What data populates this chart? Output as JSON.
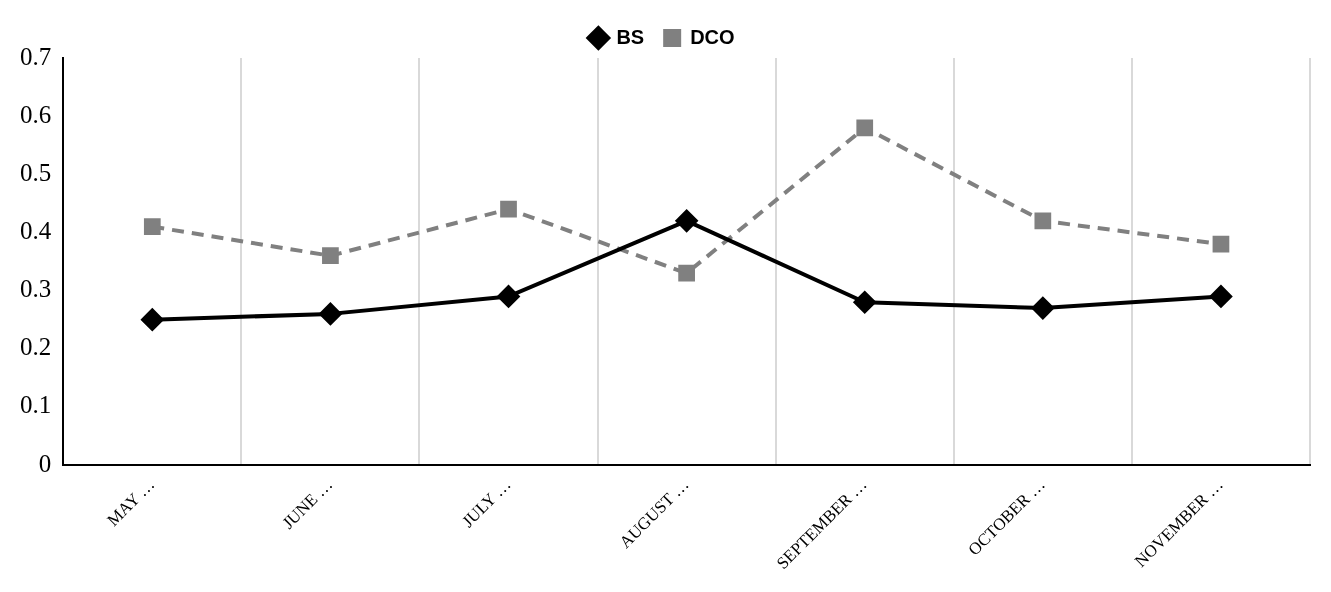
{
  "chart_data": {
    "type": "line",
    "categories": [
      "MAY …",
      "JUNE …",
      "JULY …",
      "AUGUST …",
      "SEPTEMBER …",
      "OCTOBER …",
      "NOVEMBER …"
    ],
    "series": [
      {
        "name": "BS",
        "color": "#000000",
        "marker": "diamond",
        "line_style": "solid",
        "values": [
          0.25,
          0.26,
          0.29,
          0.42,
          0.28,
          0.27,
          0.29
        ]
      },
      {
        "name": "DCO",
        "color": "#808080",
        "marker": "square",
        "line_style": "dashed",
        "values": [
          0.41,
          0.36,
          0.44,
          0.33,
          0.58,
          0.42,
          0.38
        ]
      }
    ],
    "ylim": [
      0,
      0.7
    ],
    "yticks": [
      0,
      0.1,
      0.2,
      0.3,
      0.4,
      0.5,
      0.6,
      0.7
    ],
    "grid": "x",
    "legend": "top"
  }
}
